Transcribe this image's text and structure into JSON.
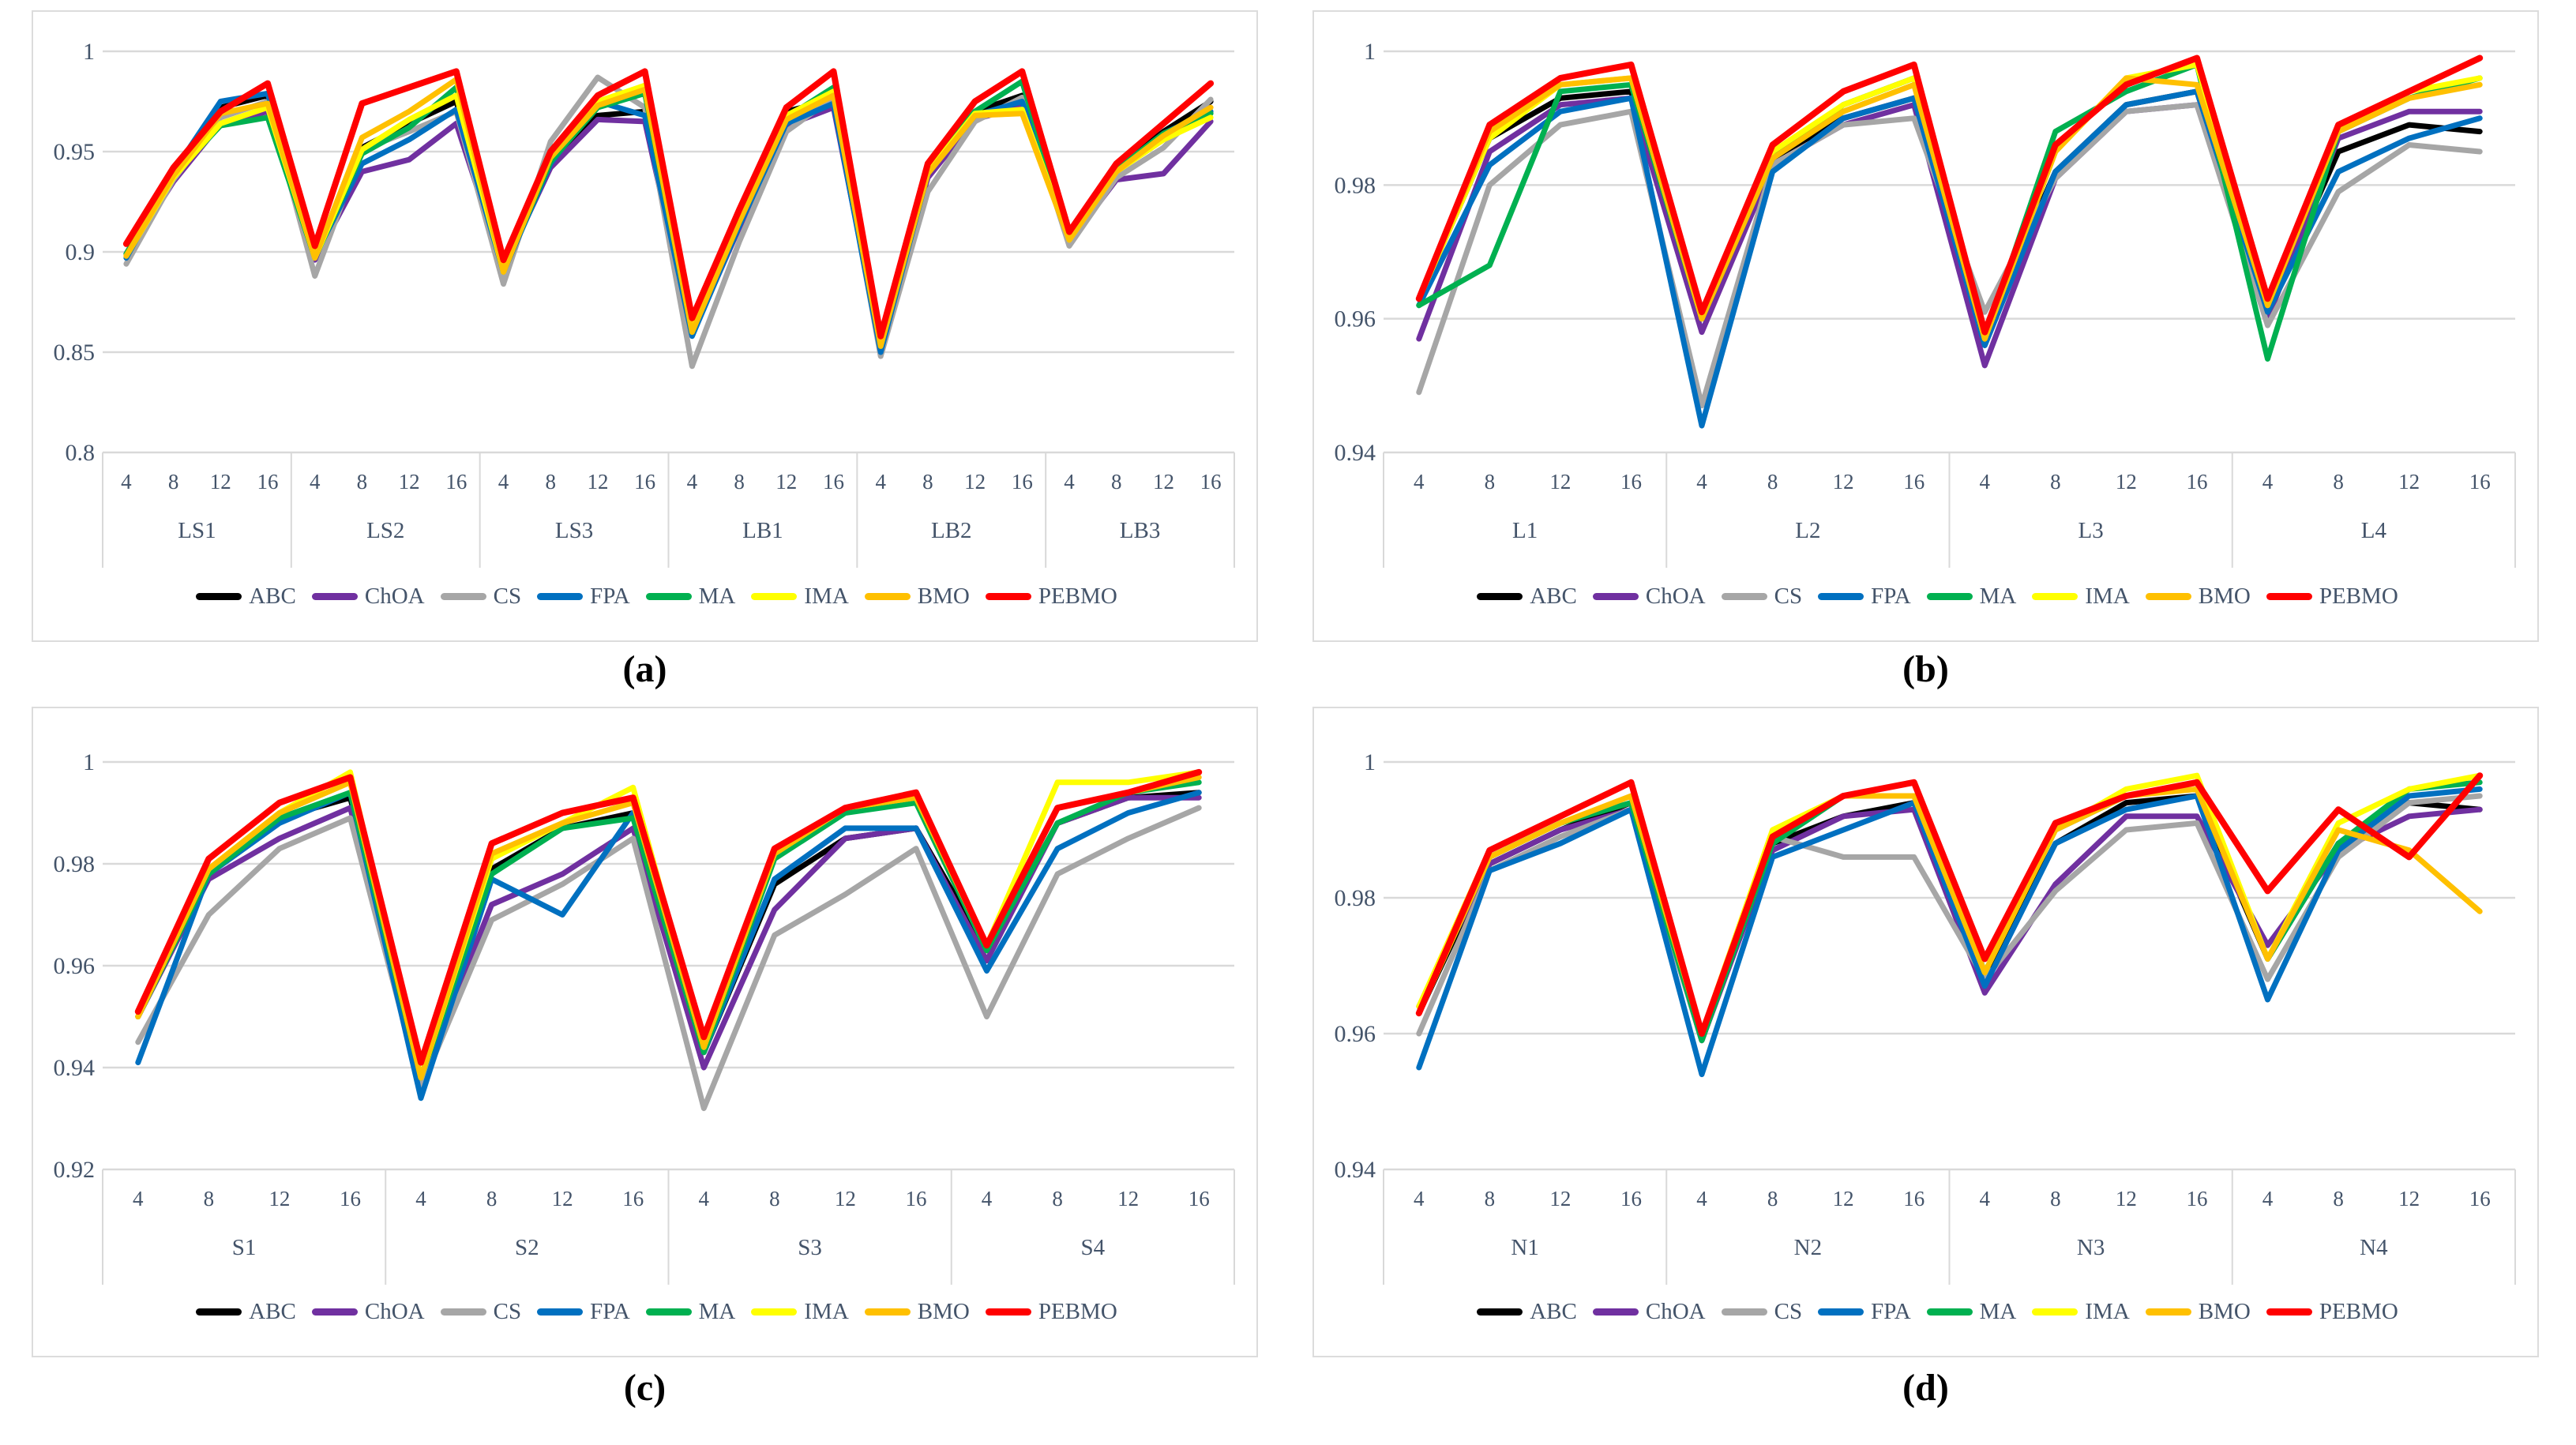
{
  "page": {
    "background": "#FFFFFF"
  },
  "colors": {
    "gridline": "#D9D9D9",
    "panel_border": "#DCDCDC",
    "axis_text": "#44546A",
    "caption_text": "#000000"
  },
  "legend": {
    "items": [
      "ABC",
      "ChOA",
      "CS",
      "FPA",
      "MA",
      "IMA",
      "BMO",
      "PEBMO"
    ]
  },
  "chart_data": [
    {
      "id": "a",
      "type": "line",
      "caption": "(a)",
      "y_min": 0.8,
      "y_max": 1.0,
      "grid": "horizontal",
      "legend_position": "bottom",
      "y_ticks": [
        {
          "label": "1",
          "value": 1.0
        },
        {
          "label": "0.95",
          "value": 0.95
        },
        {
          "label": "0.9",
          "value": 0.9
        },
        {
          "label": "0.85",
          "value": 0.85
        },
        {
          "label": "0.8",
          "value": 0.8
        }
      ],
      "x_groups": [
        "LS1",
        "LS2",
        "LS3",
        "LB1",
        "LB2",
        "LB3"
      ],
      "x_ticks_per_group": [
        "4",
        "8",
        "12",
        "16"
      ],
      "series": [
        {
          "name": "ABC",
          "color": "#000000",
          "values": [
            0.899,
            0.939,
            0.972,
            0.978,
            0.898,
            0.952,
            0.964,
            0.975,
            0.893,
            0.946,
            0.968,
            0.97,
            0.86,
            0.919,
            0.97,
            0.976,
            0.855,
            0.941,
            0.97,
            0.978,
            0.908,
            0.942,
            0.96,
            0.975
          ]
        },
        {
          "name": "ChOA",
          "color": "#7030A0",
          "values": [
            0.898,
            0.935,
            0.964,
            0.97,
            0.896,
            0.94,
            0.946,
            0.964,
            0.892,
            0.942,
            0.966,
            0.965,
            0.859,
            0.912,
            0.963,
            0.972,
            0.853,
            0.937,
            0.966,
            0.973,
            0.905,
            0.936,
            0.939,
            0.965
          ]
        },
        {
          "name": "CS",
          "color": "#A6A6A6",
          "values": [
            0.894,
            0.936,
            0.967,
            0.975,
            0.888,
            0.951,
            0.96,
            0.97,
            0.884,
            0.955,
            0.987,
            0.972,
            0.843,
            0.905,
            0.96,
            0.977,
            0.848,
            0.93,
            0.965,
            0.977,
            0.903,
            0.937,
            0.952,
            0.976
          ]
        },
        {
          "name": "FPA",
          "color": "#0070C0",
          "values": [
            0.897,
            0.94,
            0.975,
            0.979,
            0.898,
            0.944,
            0.956,
            0.971,
            0.89,
            0.944,
            0.975,
            0.968,
            0.858,
            0.913,
            0.964,
            0.974,
            0.85,
            0.939,
            0.968,
            0.975,
            0.907,
            0.941,
            0.959,
            0.97
          ]
        },
        {
          "name": "MA",
          "color": "#00B050",
          "values": [
            0.899,
            0.938,
            0.963,
            0.967,
            0.897,
            0.949,
            0.962,
            0.982,
            0.891,
            0.945,
            0.972,
            0.979,
            0.86,
            0.916,
            0.967,
            0.982,
            0.854,
            0.94,
            0.97,
            0.985,
            0.907,
            0.941,
            0.959,
            0.969
          ]
        },
        {
          "name": "IMA",
          "color": "#FFFF00",
          "values": [
            0.898,
            0.937,
            0.964,
            0.972,
            0.897,
            0.951,
            0.966,
            0.978,
            0.89,
            0.948,
            0.975,
            0.983,
            0.861,
            0.917,
            0.968,
            0.98,
            0.854,
            0.94,
            0.969,
            0.971,
            0.906,
            0.94,
            0.956,
            0.967
          ]
        },
        {
          "name": "BMO",
          "color": "#FFC000",
          "values": [
            0.898,
            0.938,
            0.969,
            0.974,
            0.897,
            0.957,
            0.97,
            0.986,
            0.89,
            0.947,
            0.973,
            0.981,
            0.86,
            0.915,
            0.966,
            0.978,
            0.853,
            0.939,
            0.968,
            0.969,
            0.906,
            0.94,
            0.958,
            0.972
          ]
        },
        {
          "name": "PEBMO",
          "color": "#FF0000",
          "values": [
            0.904,
            0.942,
            0.97,
            0.984,
            0.903,
            0.974,
            0.982,
            0.99,
            0.896,
            0.95,
            0.978,
            0.99,
            0.867,
            0.921,
            0.972,
            0.99,
            0.858,
            0.944,
            0.975,
            0.99,
            0.91,
            0.944,
            0.964,
            0.984
          ]
        }
      ]
    },
    {
      "id": "b",
      "type": "line",
      "caption": "(b)",
      "y_min": 0.94,
      "y_max": 1.0,
      "grid": "horizontal",
      "legend_position": "bottom",
      "y_ticks": [
        {
          "label": "1",
          "value": 1.0
        },
        {
          "label": "0.98",
          "value": 0.98
        },
        {
          "label": "0.96",
          "value": 0.96
        },
        {
          "label": "0.94",
          "value": 0.94
        }
      ],
      "x_groups": [
        "L1",
        "L2",
        "L3",
        "L4"
      ],
      "x_ticks_per_group": [
        "4",
        "8",
        "12",
        "16"
      ],
      "series": [
        {
          "name": "ABC",
          "color": "#000000",
          "values": [
            0.963,
            0.987,
            0.993,
            0.994,
            0.96,
            0.984,
            0.99,
            0.993,
            0.958,
            0.982,
            0.992,
            0.994,
            0.961,
            0.985,
            0.989,
            0.988
          ]
        },
        {
          "name": "ChOA",
          "color": "#7030A0",
          "values": [
            0.957,
            0.985,
            0.992,
            0.993,
            0.958,
            0.983,
            0.989,
            0.992,
            0.953,
            0.981,
            0.991,
            0.992,
            0.96,
            0.987,
            0.991,
            0.991
          ]
        },
        {
          "name": "CS",
          "color": "#A6A6A6",
          "values": [
            0.949,
            0.98,
            0.989,
            0.991,
            0.947,
            0.983,
            0.989,
            0.99,
            0.961,
            0.981,
            0.991,
            0.992,
            0.959,
            0.979,
            0.986,
            0.985
          ]
        },
        {
          "name": "FPA",
          "color": "#0070C0",
          "values": [
            0.962,
            0.983,
            0.991,
            0.993,
            0.944,
            0.982,
            0.99,
            0.993,
            0.956,
            0.982,
            0.992,
            0.994,
            0.961,
            0.982,
            0.987,
            0.99
          ]
        },
        {
          "name": "MA",
          "color": "#00B050",
          "values": [
            0.962,
            0.968,
            0.994,
            0.995,
            0.96,
            0.984,
            0.992,
            0.996,
            0.957,
            0.988,
            0.994,
            0.998,
            0.954,
            0.988,
            0.993,
            0.996
          ]
        },
        {
          "name": "IMA",
          "color": "#FFFF00",
          "values": [
            0.963,
            0.987,
            0.995,
            0.996,
            0.96,
            0.985,
            0.992,
            0.996,
            0.957,
            0.985,
            0.996,
            0.998,
            0.962,
            0.988,
            0.994,
            0.996
          ]
        },
        {
          "name": "BMO",
          "color": "#FFC000",
          "values": [
            0.963,
            0.988,
            0.995,
            0.996,
            0.96,
            0.984,
            0.991,
            0.995,
            0.957,
            0.985,
            0.996,
            0.995,
            0.962,
            0.988,
            0.993,
            0.995
          ]
        },
        {
          "name": "PEBMO",
          "color": "#FF0000",
          "values": [
            0.963,
            0.989,
            0.996,
            0.998,
            0.961,
            0.986,
            0.994,
            0.998,
            0.958,
            0.986,
            0.995,
            0.999,
            0.963,
            0.989,
            0.994,
            0.999
          ]
        }
      ]
    },
    {
      "id": "c",
      "type": "line",
      "caption": "(c)",
      "y_min": 0.92,
      "y_max": 1.0,
      "grid": "horizontal",
      "legend_position": "bottom",
      "y_ticks": [
        {
          "label": "1",
          "value": 1.0
        },
        {
          "label": "0.98",
          "value": 0.98
        },
        {
          "label": "0.96",
          "value": 0.96
        },
        {
          "label": "0.94",
          "value": 0.94
        },
        {
          "label": "0.92",
          "value": 0.92
        }
      ],
      "x_groups": [
        "S1",
        "S2",
        "S3",
        "S4"
      ],
      "x_ticks_per_group": [
        "4",
        "8",
        "12",
        "16"
      ],
      "series": [
        {
          "name": "ABC",
          "color": "#000000",
          "values": [
            0.95,
            0.978,
            0.989,
            0.993,
            0.938,
            0.979,
            0.987,
            0.99,
            0.943,
            0.976,
            0.985,
            0.987,
            0.963,
            0.988,
            0.993,
            0.994
          ]
        },
        {
          "name": "ChOA",
          "color": "#7030A0",
          "values": [
            0.95,
            0.977,
            0.985,
            0.991,
            0.937,
            0.972,
            0.978,
            0.987,
            0.94,
            0.971,
            0.985,
            0.987,
            0.961,
            0.988,
            0.993,
            0.993
          ]
        },
        {
          "name": "CS",
          "color": "#A6A6A6",
          "values": [
            0.945,
            0.97,
            0.983,
            0.989,
            0.936,
            0.969,
            0.976,
            0.985,
            0.932,
            0.966,
            0.974,
            0.983,
            0.95,
            0.978,
            0.985,
            0.991
          ]
        },
        {
          "name": "FPA",
          "color": "#0070C0",
          "values": [
            0.941,
            0.978,
            0.988,
            0.994,
            0.934,
            0.977,
            0.97,
            0.99,
            0.943,
            0.977,
            0.987,
            0.987,
            0.959,
            0.983,
            0.99,
            0.994
          ]
        },
        {
          "name": "MA",
          "color": "#00B050",
          "values": [
            0.95,
            0.978,
            0.989,
            0.994,
            0.938,
            0.978,
            0.987,
            0.989,
            0.943,
            0.981,
            0.99,
            0.992,
            0.963,
            0.988,
            0.994,
            0.996
          ]
        },
        {
          "name": "IMA",
          "color": "#FFFF00",
          "values": [
            0.95,
            0.979,
            0.99,
            0.998,
            0.938,
            0.981,
            0.988,
            0.995,
            0.944,
            0.982,
            0.991,
            0.993,
            0.964,
            0.996,
            0.996,
            0.998
          ]
        },
        {
          "name": "BMO",
          "color": "#FFC000",
          "values": [
            0.95,
            0.979,
            0.99,
            0.996,
            0.938,
            0.982,
            0.988,
            0.992,
            0.944,
            0.982,
            0.991,
            0.993,
            0.964,
            0.991,
            0.994,
            0.997
          ]
        },
        {
          "name": "PEBMO",
          "color": "#FF0000",
          "values": [
            0.951,
            0.981,
            0.992,
            0.997,
            0.941,
            0.984,
            0.99,
            0.993,
            0.946,
            0.983,
            0.991,
            0.994,
            0.964,
            0.991,
            0.994,
            0.998
          ]
        }
      ]
    },
    {
      "id": "d",
      "type": "line",
      "caption": "(d)",
      "y_min": 0.94,
      "y_max": 1.0,
      "grid": "horizontal",
      "legend_position": "bottom",
      "y_ticks": [
        {
          "label": "1",
          "value": 1.0
        },
        {
          "label": "0.98",
          "value": 0.98
        },
        {
          "label": "0.96",
          "value": 0.96
        },
        {
          "label": "0.94",
          "value": 0.94
        }
      ],
      "x_groups": [
        "N1",
        "N2",
        "N3",
        "N4"
      ],
      "x_ticks_per_group": [
        "4",
        "8",
        "12",
        "16"
      ],
      "series": [
        {
          "name": "ABC",
          "color": "#000000",
          "values": [
            0.963,
            0.985,
            0.99,
            0.994,
            0.959,
            0.988,
            0.992,
            0.994,
            0.968,
            0.988,
            0.994,
            0.995,
            0.971,
            0.988,
            0.994,
            0.993
          ]
        },
        {
          "name": "ChOA",
          "color": "#7030A0",
          "values": [
            0.964,
            0.985,
            0.99,
            0.993,
            0.959,
            0.987,
            0.992,
            0.993,
            0.966,
            0.982,
            0.992,
            0.992,
            0.973,
            0.987,
            0.992,
            0.993
          ]
        },
        {
          "name": "CS",
          "color": "#A6A6A6",
          "values": [
            0.96,
            0.984,
            0.989,
            0.993,
            0.959,
            0.989,
            0.986,
            0.986,
            0.968,
            0.981,
            0.99,
            0.991,
            0.968,
            0.986,
            0.994,
            0.995
          ]
        },
        {
          "name": "FPA",
          "color": "#0070C0",
          "values": [
            0.955,
            0.984,
            0.988,
            0.993,
            0.954,
            0.986,
            0.99,
            0.994,
            0.967,
            0.988,
            0.993,
            0.995,
            0.965,
            0.987,
            0.995,
            0.996
          ]
        },
        {
          "name": "MA",
          "color": "#00B050",
          "values": [
            0.963,
            0.986,
            0.991,
            0.994,
            0.959,
            0.988,
            0.995,
            0.997,
            0.969,
            0.99,
            0.995,
            0.997,
            0.971,
            0.988,
            0.996,
            0.997
          ]
        },
        {
          "name": "IMA",
          "color": "#FFFF00",
          "values": [
            0.964,
            0.987,
            0.992,
            0.997,
            0.96,
            0.99,
            0.995,
            0.995,
            0.969,
            0.99,
            0.996,
            0.998,
            0.971,
            0.991,
            0.996,
            0.998
          ]
        },
        {
          "name": "BMO",
          "color": "#FFC000",
          "values": [
            0.963,
            0.986,
            0.991,
            0.995,
            0.96,
            0.989,
            0.995,
            0.995,
            0.969,
            0.99,
            0.995,
            0.996,
            0.971,
            0.99,
            0.987,
            0.978
          ]
        },
        {
          "name": "PEBMO",
          "color": "#FF0000",
          "values": [
            0.963,
            0.987,
            0.992,
            0.997,
            0.96,
            0.989,
            0.995,
            0.997,
            0.971,
            0.991,
            0.995,
            0.997,
            0.981,
            0.993,
            0.986,
            0.998
          ]
        }
      ]
    }
  ]
}
